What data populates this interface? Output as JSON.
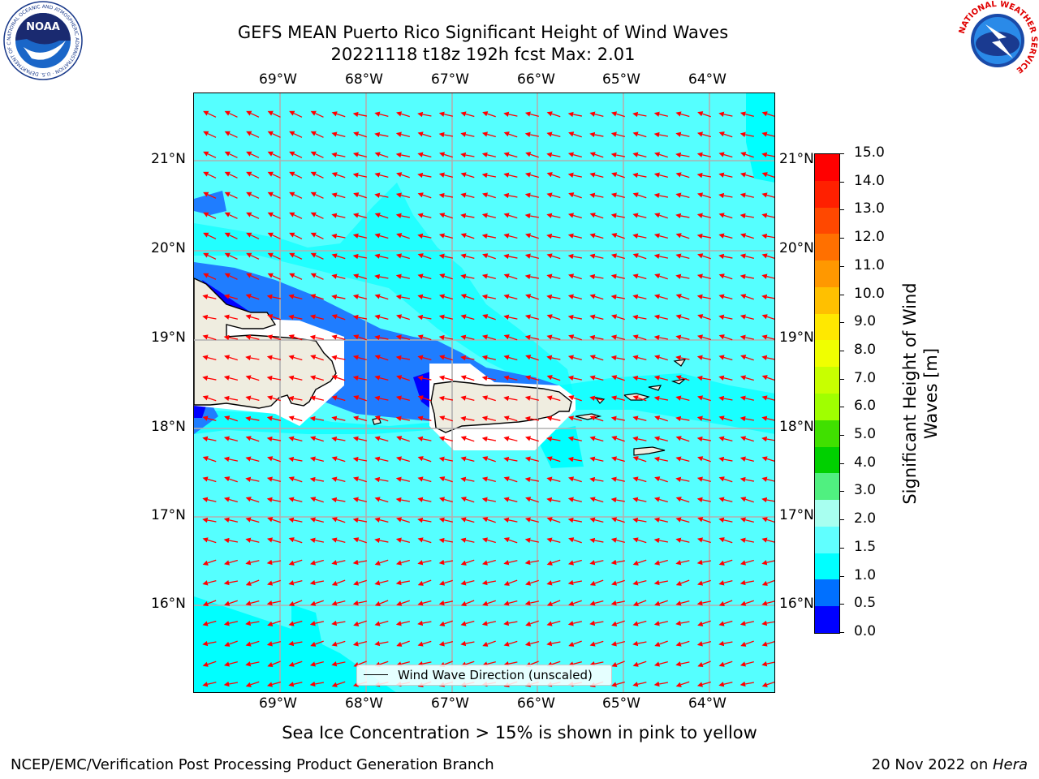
{
  "title": {
    "line1": "GEFS MEAN Puerto Rico Significant Height of Wind Waves",
    "line2": "20221118 t18z 192h fcst   Max: 2.01"
  },
  "map": {
    "lon_labels": [
      "69°W",
      "68°W",
      "67°W",
      "66°W",
      "65°W",
      "64°W"
    ],
    "lat_labels": [
      "21°N",
      "20°N",
      "19°N",
      "18°N",
      "17°N",
      "16°N"
    ],
    "legend_label": "Wind Wave Direction (unscaled)"
  },
  "colorbar": {
    "label_line1": "Significant Height of Wind",
    "label_line2": "Waves [m]",
    "ticks": [
      "15.0",
      "14.0",
      "13.0",
      "12.0",
      "11.0",
      "10.0",
      "9.0",
      "8.0",
      "7.0",
      "6.0",
      "5.0",
      "4.0",
      "3.0",
      "2.0",
      "1.5",
      "1.0",
      "0.5",
      "0.0"
    ],
    "colors_top_to_bottom": [
      "#ff0000",
      "#ff2000",
      "#ff4800",
      "#ff7000",
      "#ff9800",
      "#ffc000",
      "#ffe800",
      "#f0ff00",
      "#c8ff00",
      "#a0ff00",
      "#40e000",
      "#00d000",
      "#50f080",
      "#a8fff0",
      "#60ffff",
      "#00ffff",
      "#0070ff",
      "#0000ff"
    ]
  },
  "colors": {
    "sea_main": "#55ffff",
    "sea_lighter": "#a0ffff",
    "sea_medium": "#00ffff",
    "sea_blue": "#1f7dff",
    "sea_dark": "#0000ff",
    "land": "#efede0",
    "arrow": "#ff0000",
    "grid": "#b0b0b0"
  },
  "note": "Sea Ice Concentration > 15% is shown in pink to yellow",
  "footer": {
    "left": "NCEP/EMC/Verification Post Processing Product Generation Branch",
    "date": "20 Nov 2022 on ",
    "host": "Hera"
  },
  "logos": {
    "left_text": "NOAA",
    "left_ring": "NATIONAL OCEANIC AND ATMOSPHERIC ADMINISTRATION · U.S. DEPARTMENT OF COMMERCE",
    "right_ring": "NATIONAL WEATHER SERVICE"
  }
}
